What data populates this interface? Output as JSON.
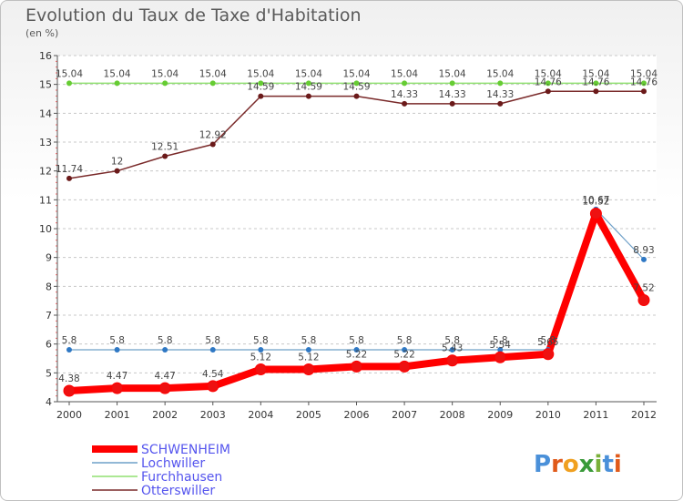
{
  "title": "Evolution du Taux de Taxe d'Habitation",
  "subtitle": "(en %)",
  "logo": "Proxiti",
  "chart_data": {
    "type": "line",
    "title": "Evolution du Taux de Taxe d'Habitation",
    "subtitle": "(en %)",
    "x": [
      "2000",
      "2001",
      "2002",
      "2003",
      "2004",
      "2005",
      "2006",
      "2007",
      "2008",
      "2009",
      "2010",
      "2011",
      "2012"
    ],
    "ylim": [
      4,
      16
    ],
    "yticks": [
      "4",
      "5",
      "6",
      "7",
      "8",
      "9",
      "10",
      "11",
      "12",
      "13",
      "14",
      "15",
      "16"
    ],
    "grid": "horizontal dashed",
    "legend_position": "bottom-left",
    "series": [
      {
        "name": "Furchhausen",
        "color": "#90e070",
        "marker": "#66cc33",
        "width": 1.5,
        "values": [
          15.04,
          15.04,
          15.04,
          15.04,
          15.04,
          15.04,
          15.04,
          15.04,
          15.04,
          15.04,
          15.04,
          15.04,
          15.04
        ],
        "labels": [
          "15.04",
          "15.04",
          "15.04",
          "15.04",
          "15.04",
          "15.04",
          "15.04",
          "15.04",
          "15.04",
          "15.04",
          "15.04",
          "15.04",
          "15.04"
        ]
      },
      {
        "name": "Otterswiller",
        "color": "#7a2a2a",
        "marker": "#6b1a1a",
        "width": 1.5,
        "values": [
          11.74,
          12,
          12.51,
          12.92,
          14.59,
          14.59,
          14.59,
          14.33,
          14.33,
          14.33,
          14.76,
          14.76,
          14.76
        ],
        "labels": [
          "11.74",
          "12",
          "12.51",
          "12.92",
          "14.59",
          "14.59",
          "14.59",
          "14.33",
          "14.33",
          "14.33",
          "14.76",
          "14.76",
          "14.76"
        ]
      },
      {
        "name": "Lochwiller",
        "color": "#6fa0c8",
        "marker": "#2f78c4",
        "width": 1.2,
        "values": [
          5.8,
          5.8,
          5.8,
          5.8,
          5.8,
          5.8,
          5.8,
          5.8,
          5.8,
          5.8,
          5.8,
          10.67,
          8.93
        ],
        "labels": [
          "5.8",
          "5.8",
          "5.8",
          "5.8",
          "5.8",
          "5.8",
          "5.8",
          "5.8",
          "5.8",
          "5.8",
          "5.8",
          "10.67",
          "8.93"
        ]
      },
      {
        "name": "SCHWENHEIM",
        "color": "#ff0000",
        "marker": "#ee1111",
        "width": 8,
        "values": [
          4.38,
          4.47,
          4.47,
          4.54,
          5.12,
          5.12,
          5.22,
          5.22,
          5.43,
          5.54,
          5.65,
          10.52,
          7.52
        ],
        "labels": [
          "4.38",
          "4.47",
          "4.47",
          "4.54",
          "5.12",
          "5.12",
          "5.22",
          "5.22",
          "5.43",
          "5.54",
          "5.65",
          "10.52",
          "7.52"
        ]
      }
    ],
    "legend": [
      {
        "name": "SCHWENHEIM",
        "text_color": "#5555ee",
        "line_color": "#ff0000",
        "thick": true
      },
      {
        "name": "Lochwiller",
        "text_color": "#5555ee",
        "line_color": "#6fa0c8",
        "thick": false
      },
      {
        "name": "Furchhausen",
        "text_color": "#5555ee",
        "line_color": "#90e070",
        "thick": false
      },
      {
        "name": "Otterswiller",
        "text_color": "#5555ee",
        "line_color": "#7a2a2a",
        "thick": false
      }
    ]
  }
}
